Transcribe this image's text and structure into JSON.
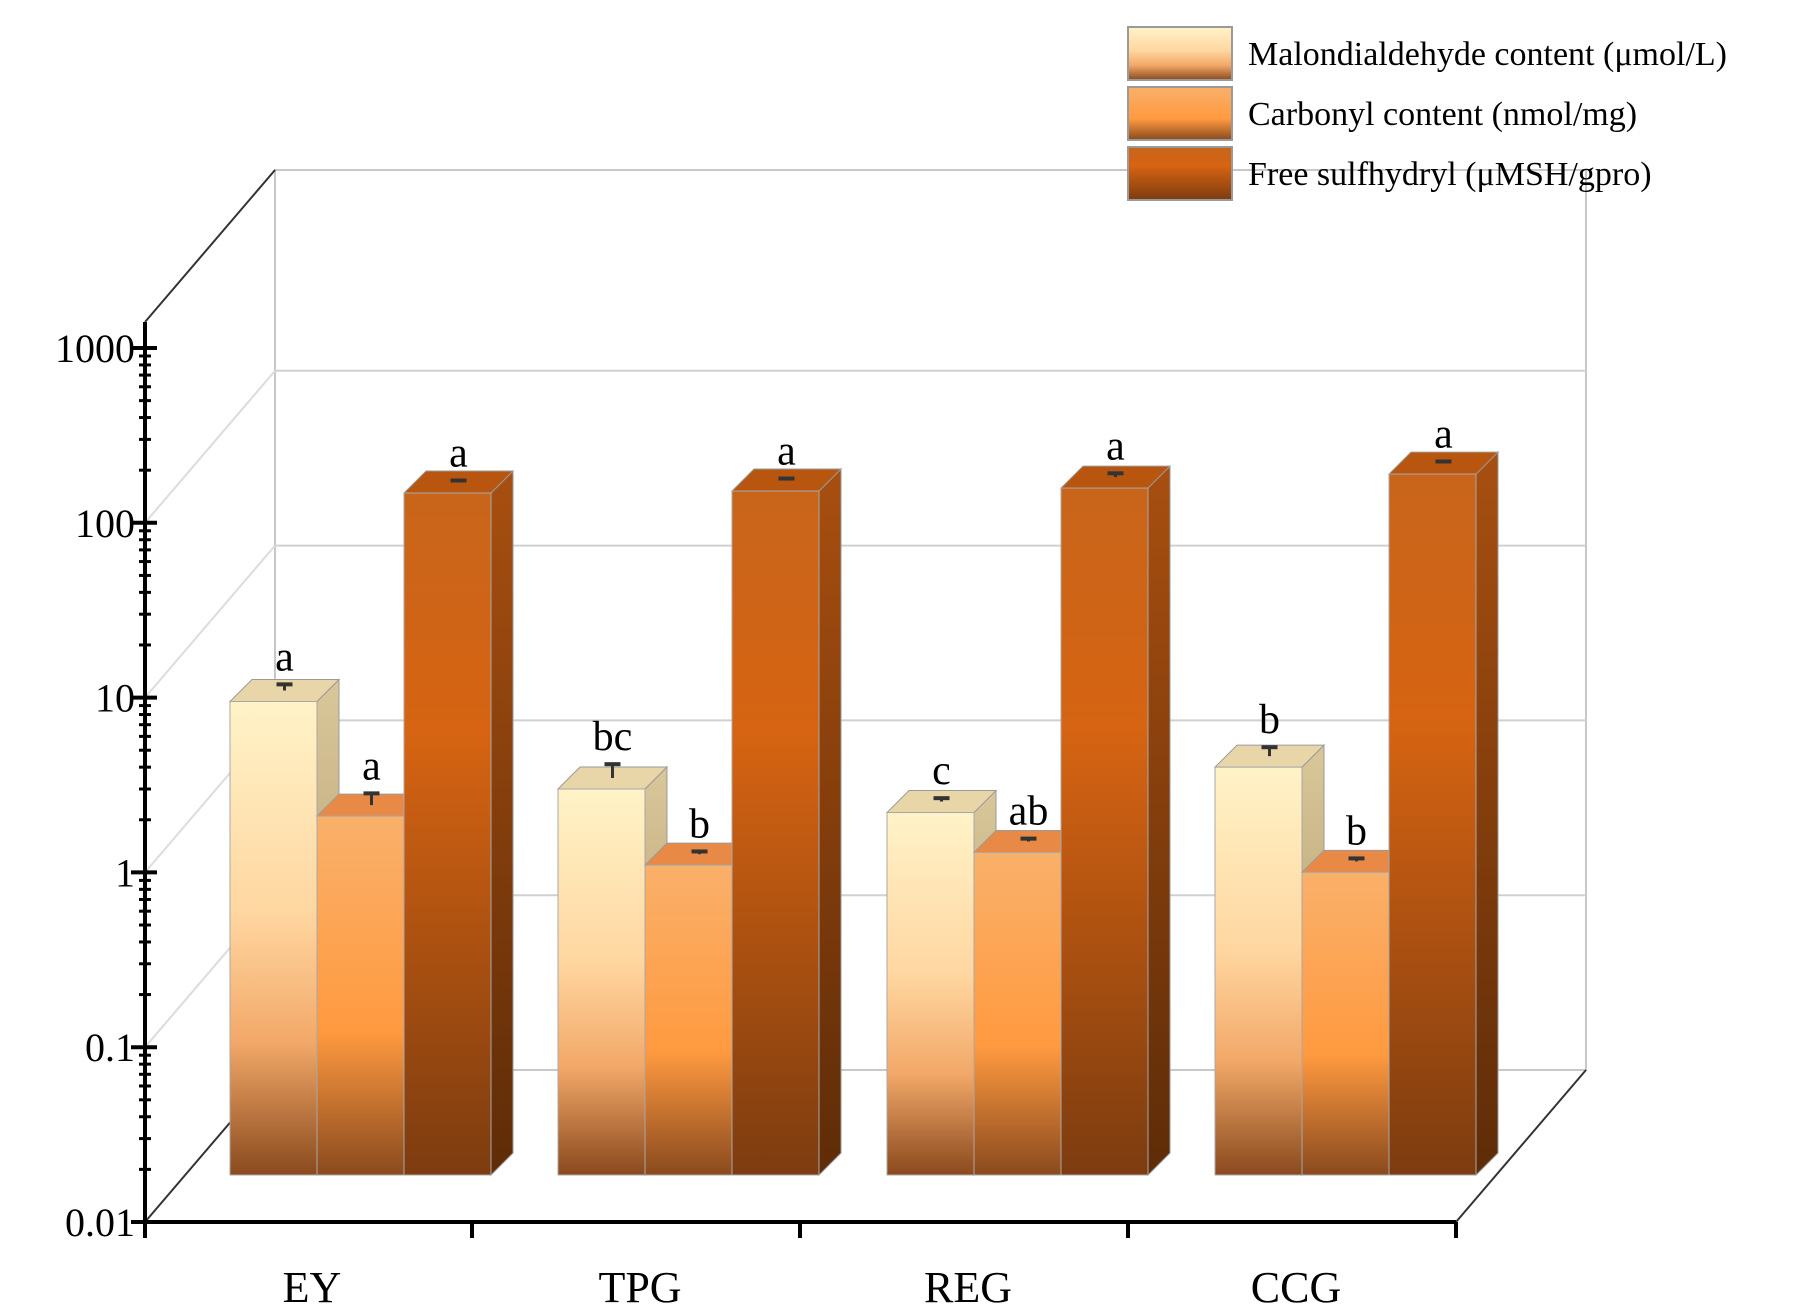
{
  "chart_data": {
    "type": "bar",
    "style": "3d",
    "title": "",
    "xlabel": "",
    "ylabel": "",
    "yscale": "log",
    "ylim": [
      0.01,
      1000
    ],
    "ytick_labels": [
      "0.01",
      "0.1",
      "1",
      "10",
      "100",
      "1000"
    ],
    "categories": [
      "EY",
      "TPG",
      "REG",
      "CCG"
    ],
    "legend_position": "top-right",
    "series": [
      {
        "name": "Malondialdehyde content (μmol/L)",
        "values": [
          9.5,
          3.0,
          2.2,
          4.0
        ],
        "errors": [
          0.8,
          0.6,
          0.1,
          0.5
        ],
        "significance": [
          "a",
          "bc",
          "c",
          "b"
        ],
        "color_top": "#fff3c8",
        "color_mid": "#ffa860",
        "color_bottom": "#8a4a1e"
      },
      {
        "name": "Carbonyl content (nmol/mg)",
        "values": [
          2.1,
          1.1,
          1.3,
          1.0
        ],
        "errors": [
          0.35,
          0.04,
          0.05,
          0.04
        ],
        "significance": [
          "a",
          "b",
          "ab",
          "b"
        ],
        "color_top": "#f9b06a",
        "color_mid": "#ff9a40",
        "color_bottom": "#8a4a1e"
      },
      {
        "name": "Free sulfhydryl (μMSH/gpro)",
        "values": [
          148,
          152,
          158,
          190
        ],
        "errors": [
          3,
          3,
          8,
          4
        ],
        "significance": [
          "a",
          "a",
          "a",
          "a"
        ],
        "color_top": "#c8651b",
        "color_mid": "#d66412",
        "color_bottom": "#7d3c10"
      }
    ]
  }
}
